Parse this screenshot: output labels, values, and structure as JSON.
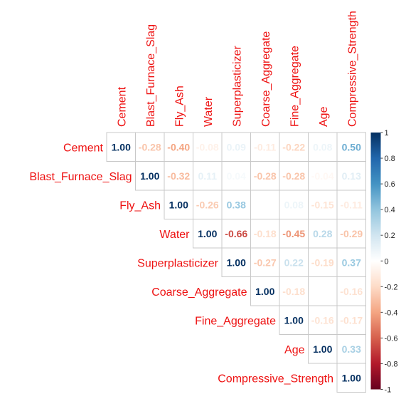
{
  "chart_data": {
    "type": "heatmap",
    "subtype": "correlation-upper-triangle",
    "title": "",
    "variables": [
      "Cement",
      "Blast_Furnace_Slag",
      "Fly_Ash",
      "Water",
      "Superplasticizer",
      "Coarse_Aggregate",
      "Fine_Aggregate",
      "Age",
      "Compressive_Strength"
    ],
    "matrix": [
      [
        1.0,
        -0.28,
        -0.4,
        -0.08,
        0.09,
        -0.11,
        -0.22,
        0.08,
        0.5
      ],
      [
        null,
        1.0,
        -0.32,
        0.11,
        0.04,
        -0.28,
        -0.28,
        -0.04,
        0.13
      ],
      [
        null,
        null,
        1.0,
        -0.26,
        0.38,
        null,
        0.08,
        -0.15,
        -0.11
      ],
      [
        null,
        null,
        null,
        1.0,
        -0.66,
        -0.18,
        -0.45,
        0.28,
        -0.29
      ],
      [
        null,
        null,
        null,
        null,
        1.0,
        -0.27,
        0.22,
        -0.19,
        0.37
      ],
      [
        null,
        null,
        null,
        null,
        null,
        1.0,
        -0.18,
        null,
        -0.16
      ],
      [
        null,
        null,
        null,
        null,
        null,
        null,
        1.0,
        -0.16,
        -0.17
      ],
      [
        null,
        null,
        null,
        null,
        null,
        null,
        null,
        1.0,
        0.33
      ],
      [
        null,
        null,
        null,
        null,
        null,
        null,
        null,
        null,
        1.0
      ]
    ],
    "color_scale": {
      "range": [
        -1,
        1
      ],
      "ticks": [
        1,
        0.8,
        0.6,
        0.4,
        0.2,
        0,
        -0.2,
        -0.4,
        -0.6,
        -0.8,
        -1
      ],
      "colors": [
        "#67001f",
        "#b2182b",
        "#d6604d",
        "#f4a582",
        "#fddbc7",
        "#ffffff",
        "#d1e5f0",
        "#92c5de",
        "#4393c3",
        "#2166ac",
        "#053061"
      ]
    },
    "label_color": "#ee1111",
    "legend_position": "right"
  }
}
